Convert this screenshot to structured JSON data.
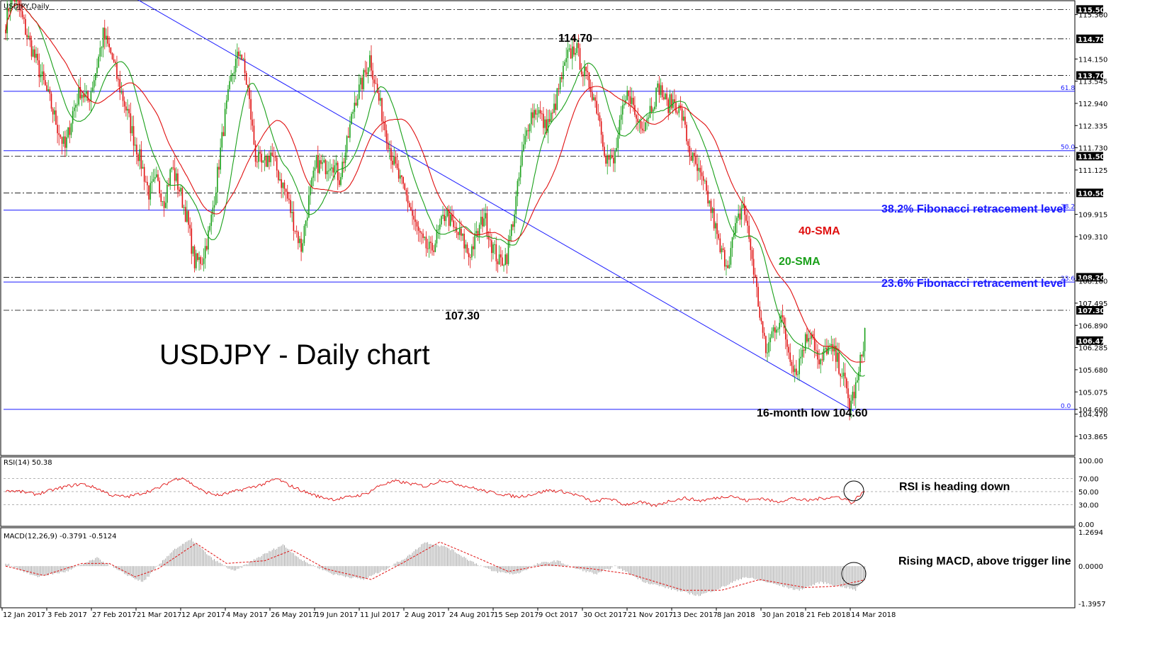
{
  "chart_data": [
    {
      "type": "candlestick",
      "instrument_label": "USDJPY,Daily",
      "title": "USDJPY - Daily chart",
      "ylim": [
        103.4,
        115.7
      ],
      "y_ticks": [
        115.5,
        115.36,
        114.7,
        114.15,
        113.7,
        113.545,
        112.94,
        112.335,
        111.73,
        111.5,
        111.125,
        110.5,
        109.915,
        109.31,
        108.2,
        108.1,
        107.495,
        107.3,
        106.89,
        106.473,
        106.285,
        105.68,
        105.075,
        104.6,
        104.47,
        103.865
      ],
      "x_tick_labels": [
        "12 Jan 2017",
        "3 Feb 2017",
        "27 Feb 2017",
        "21 Mar 2017",
        "12 Apr 2017",
        "4 May 2017",
        "26 May 2017",
        "19 Jun 2017",
        "11 Jul 2017",
        "2 Aug 2017",
        "24 Aug 2017",
        "15 Sep 2017",
        "9 Oct 2017",
        "30 Oct 2017",
        "21 Nov 2017",
        "13 Dec 2017",
        "8 Jan 2018",
        "30 Jan 2018",
        "21 Feb 2018",
        "14 Mar 2018"
      ],
      "price_anchors": [
        [
          0,
          115.1
        ],
        [
          4,
          116.0
        ],
        [
          9,
          115.5
        ],
        [
          14,
          114.8
        ],
        [
          19,
          114.2
        ],
        [
          24,
          113.6
        ],
        [
          29,
          113.0
        ],
        [
          34,
          112.3
        ],
        [
          39,
          111.7
        ],
        [
          44,
          112.7
        ],
        [
          49,
          113.3
        ],
        [
          54,
          113.0
        ],
        [
          59,
          113.8
        ],
        [
          64,
          114.8
        ],
        [
          69,
          114.3
        ],
        [
          74,
          113.5
        ],
        [
          79,
          112.8
        ],
        [
          84,
          112.0
        ],
        [
          89,
          111.3
        ],
        [
          94,
          110.5
        ],
        [
          99,
          110.8
        ],
        [
          104,
          110.3
        ],
        [
          109,
          111.2
        ],
        [
          114,
          110.6
        ],
        [
          119,
          109.8
        ],
        [
          124,
          108.6
        ],
        [
          129,
          108.7
        ],
        [
          134,
          109.5
        ],
        [
          139,
          111.0
        ],
        [
          144,
          112.6
        ],
        [
          149,
          113.8
        ],
        [
          154,
          114.4
        ],
        [
          159,
          113.3
        ],
        [
          164,
          111.5
        ],
        [
          169,
          111.2
        ],
        [
          174,
          111.6
        ],
        [
          179,
          111.0
        ],
        [
          184,
          110.5
        ],
        [
          189,
          109.7
        ],
        [
          194,
          109.0
        ],
        [
          199,
          110.3
        ],
        [
          204,
          111.3
        ],
        [
          209,
          111.2
        ],
        [
          214,
          111.4
        ],
        [
          219,
          110.9
        ],
        [
          224,
          111.8
        ],
        [
          229,
          113.0
        ],
        [
          234,
          113.5
        ],
        [
          239,
          114.2
        ],
        [
          244,
          113.2
        ],
        [
          249,
          112.3
        ],
        [
          254,
          111.4
        ],
        [
          259,
          110.8
        ],
        [
          264,
          110.3
        ],
        [
          269,
          109.6
        ],
        [
          274,
          109.1
        ],
        [
          279,
          108.9
        ],
        [
          284,
          109.4
        ],
        [
          289,
          110.0
        ],
        [
          294,
          109.5
        ],
        [
          299,
          109.3
        ],
        [
          304,
          108.8
        ],
        [
          309,
          109.3
        ],
        [
          314,
          109.9
        ],
        [
          319,
          109.1
        ],
        [
          324,
          108.6
        ],
        [
          329,
          108.8
        ],
        [
          334,
          110.0
        ],
        [
          339,
          111.5
        ],
        [
          344,
          112.6
        ],
        [
          349,
          112.8
        ],
        [
          354,
          112.3
        ],
        [
          359,
          112.6
        ],
        [
          364,
          113.5
        ],
        [
          369,
          114.2
        ],
        [
          374,
          114.5
        ],
        [
          379,
          113.8
        ],
        [
          384,
          113.4
        ],
        [
          389,
          112.7
        ],
        [
          394,
          111.5
        ],
        [
          399,
          111.3
        ],
        [
          404,
          112.5
        ],
        [
          409,
          113.3
        ],
        [
          414,
          112.5
        ],
        [
          419,
          112.4
        ],
        [
          424,
          112.9
        ],
        [
          429,
          113.4
        ],
        [
          434,
          112.9
        ],
        [
          439,
          113.0
        ],
        [
          444,
          112.6
        ],
        [
          449,
          111.6
        ],
        [
          454,
          111.1
        ],
        [
          459,
          110.6
        ],
        [
          464,
          109.9
        ],
        [
          469,
          108.9
        ],
        [
          474,
          108.6
        ],
        [
          479,
          109.5
        ],
        [
          484,
          110.2
        ],
        [
          489,
          109.0
        ],
        [
          494,
          107.5
        ],
        [
          499,
          106.1
        ],
        [
          504,
          106.8
        ],
        [
          509,
          107.1
        ],
        [
          514,
          106.2
        ],
        [
          519,
          105.6
        ],
        [
          524,
          106.4
        ],
        [
          529,
          106.8
        ],
        [
          534,
          105.7
        ],
        [
          539,
          106.3
        ],
        [
          544,
          106.1
        ],
        [
          549,
          105.6
        ],
        [
          554,
          104.7
        ],
        [
          559,
          105.3
        ],
        [
          564,
          106.7
        ]
      ],
      "series": [
        {
          "name": "20-SMA",
          "color": "#1aa01a"
        },
        {
          "name": "40-SMA",
          "color": "#e01010"
        }
      ],
      "horizontal_levels": [
        {
          "value": 115.5,
          "label": "115.500"
        },
        {
          "value": 114.7,
          "label": "114.700"
        },
        {
          "value": 113.7,
          "label": "113.700"
        },
        {
          "value": 111.5,
          "label": "111.500"
        },
        {
          "value": 110.5,
          "label": "110.500"
        },
        {
          "value": 108.2,
          "label": "108.200"
        },
        {
          "value": 107.3,
          "label": "107.300"
        }
      ],
      "fibonacci_levels": [
        {
          "value": 113.27,
          "pct": "61.8"
        },
        {
          "value": 111.65,
          "pct": "50.0"
        },
        {
          "value": 110.03,
          "pct": "38.2"
        },
        {
          "value": 108.07,
          "pct": "23.6"
        },
        {
          "value": 104.6,
          "pct": "0.0"
        }
      ],
      "current_price": {
        "value": 106.473,
        "label": "106.473"
      },
      "annotations": {
        "high": "114.70",
        "low_aug": "107.30",
        "low_16m": "16-month low 104.60",
        "sma40": "40-SMA",
        "sma20": "20-SMA",
        "fib382": "38.2% Fibonacci retracement level",
        "fib236": "23.6% Fibonacci retracement level"
      }
    },
    {
      "type": "line",
      "indicator_label": "RSI(14) 50.38",
      "ylim": [
        0,
        100
      ],
      "y_ticks": [
        "100.00",
        "70.00",
        "50.00",
        "30.00",
        "0.00"
      ],
      "reference_lines": [
        70,
        50,
        30
      ],
      "annotation": "RSI is heading down",
      "rsi_anchors": [
        [
          0,
          52
        ],
        [
          10,
          50
        ],
        [
          20,
          46
        ],
        [
          30,
          52
        ],
        [
          40,
          58
        ],
        [
          50,
          62
        ],
        [
          60,
          55
        ],
        [
          70,
          44
        ],
        [
          80,
          42
        ],
        [
          90,
          48
        ],
        [
          100,
          55
        ],
        [
          110,
          68
        ],
        [
          116,
          72
        ],
        [
          122,
          62
        ],
        [
          130,
          50
        ],
        [
          140,
          44
        ],
        [
          150,
          50
        ],
        [
          160,
          56
        ],
        [
          170,
          62
        ],
        [
          178,
          70
        ],
        [
          186,
          60
        ],
        [
          196,
          50
        ],
        [
          206,
          42
        ],
        [
          216,
          38
        ],
        [
          226,
          42
        ],
        [
          236,
          46
        ],
        [
          246,
          60
        ],
        [
          256,
          66
        ],
        [
          266,
          62
        ],
        [
          276,
          58
        ],
        [
          286,
          68
        ],
        [
          296,
          62
        ],
        [
          306,
          56
        ],
        [
          316,
          50
        ],
        [
          326,
          46
        ],
        [
          336,
          42
        ],
        [
          346,
          46
        ],
        [
          356,
          52
        ],
        [
          366,
          50
        ],
        [
          376,
          44
        ],
        [
          386,
          34
        ],
        [
          396,
          40
        ],
        [
          406,
          30
        ],
        [
          416,
          34
        ],
        [
          426,
          28
        ],
        [
          436,
          36
        ],
        [
          446,
          40
        ],
        [
          456,
          36
        ],
        [
          466,
          40
        ],
        [
          476,
          44
        ],
        [
          486,
          36
        ],
        [
          496,
          40
        ],
        [
          506,
          34
        ],
        [
          516,
          40
        ],
        [
          526,
          36
        ],
        [
          536,
          40
        ],
        [
          546,
          42
        ],
        [
          552,
          38
        ],
        [
          556,
          32
        ],
        [
          560,
          44
        ],
        [
          564,
          50
        ]
      ]
    },
    {
      "type": "bar",
      "indicator_label": "MACD(12,26,9) -0.3791 -0.5124",
      "ylim": [
        -1.45,
        1.3
      ],
      "y_ticks": [
        "1.2694",
        "0.0000",
        "-1.3957"
      ],
      "annotation": "Rising MACD, above trigger line",
      "macd_anchors": [
        [
          0,
          0.1
        ],
        [
          20,
          -0.4
        ],
        [
          40,
          -0.2
        ],
        [
          60,
          0.3
        ],
        [
          75,
          -0.2
        ],
        [
          90,
          -0.6
        ],
        [
          110,
          0.6
        ],
        [
          122,
          1.0
        ],
        [
          135,
          0.3
        ],
        [
          150,
          -0.2
        ],
        [
          165,
          0.3
        ],
        [
          182,
          0.8
        ],
        [
          195,
          0.2
        ],
        [
          215,
          -0.3
        ],
        [
          235,
          -0.5
        ],
        [
          250,
          -0.1
        ],
        [
          265,
          0.4
        ],
        [
          275,
          0.9
        ],
        [
          290,
          0.7
        ],
        [
          305,
          0.2
        ],
        [
          320,
          -0.2
        ],
        [
          335,
          -0.3
        ],
        [
          350,
          0.1
        ],
        [
          362,
          0.2
        ],
        [
          375,
          -0.1
        ],
        [
          388,
          -0.3
        ],
        [
          400,
          0.0
        ],
        [
          420,
          -0.6
        ],
        [
          440,
          -0.9
        ],
        [
          455,
          -1.1
        ],
        [
          470,
          -0.8
        ],
        [
          485,
          -0.4
        ],
        [
          500,
          -0.6
        ],
        [
          520,
          -0.9
        ],
        [
          535,
          -0.6
        ],
        [
          552,
          -0.8
        ],
        [
          558,
          -0.9
        ],
        [
          564,
          -0.38
        ]
      ],
      "signal_anchors": [
        [
          0,
          0.0
        ],
        [
          25,
          -0.35
        ],
        [
          50,
          0.1
        ],
        [
          68,
          0.1
        ],
        [
          85,
          -0.4
        ],
        [
          100,
          -0.1
        ],
        [
          125,
          0.85
        ],
        [
          145,
          0.1
        ],
        [
          170,
          0.2
        ],
        [
          188,
          0.6
        ],
        [
          210,
          -0.1
        ],
        [
          240,
          -0.5
        ],
        [
          260,
          0.1
        ],
        [
          285,
          0.9
        ],
        [
          310,
          0.3
        ],
        [
          330,
          -0.2
        ],
        [
          355,
          0.05
        ],
        [
          385,
          -0.1
        ],
        [
          410,
          -0.3
        ],
        [
          445,
          -0.9
        ],
        [
          470,
          -0.9
        ],
        [
          495,
          -0.5
        ],
        [
          525,
          -0.8
        ],
        [
          545,
          -0.75
        ],
        [
          564,
          -0.51
        ]
      ]
    }
  ]
}
